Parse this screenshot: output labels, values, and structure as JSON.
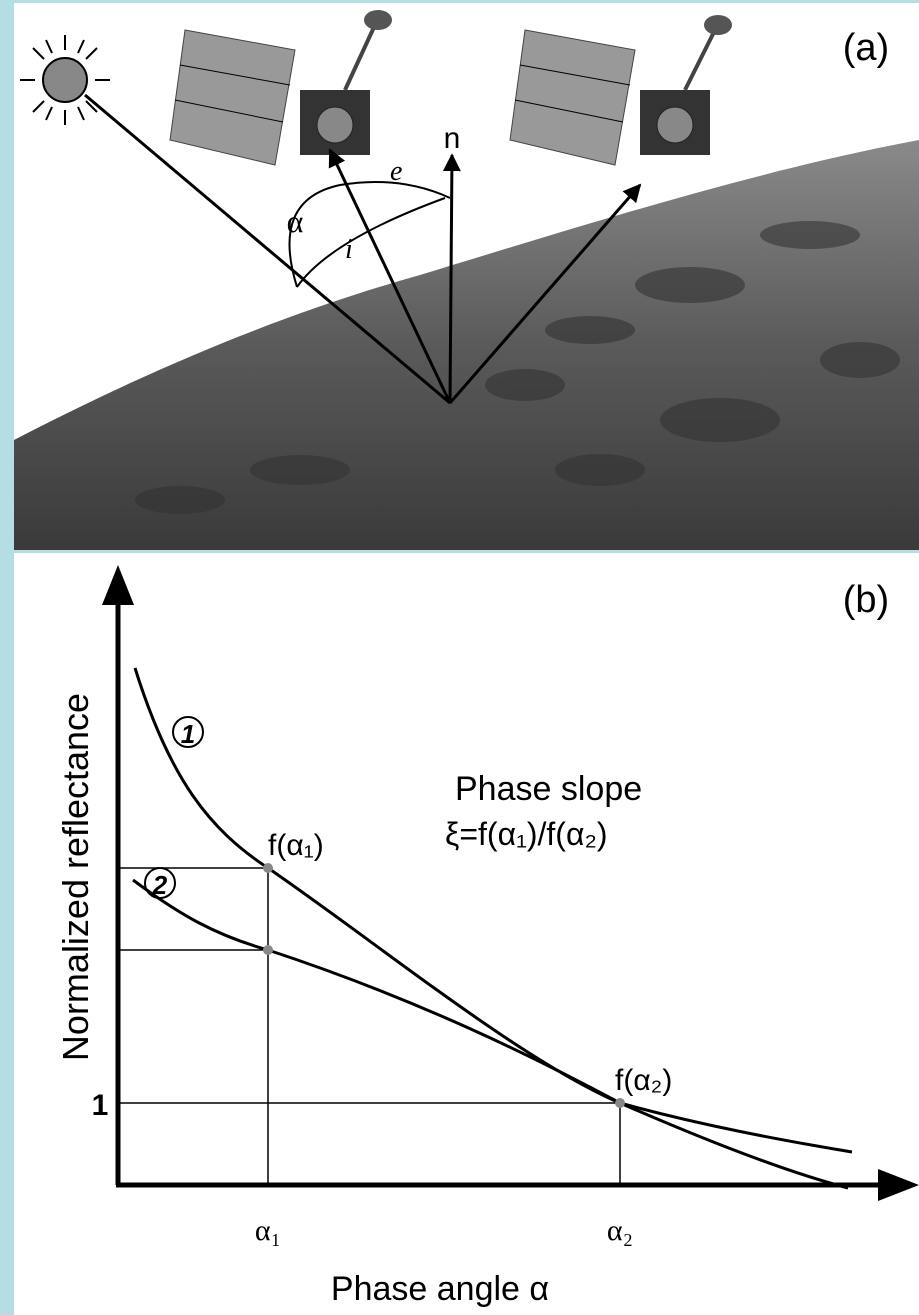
{
  "panel_a": {
    "label": "(a)",
    "normal": "n",
    "phase_angle_symbol": "α",
    "incidence_symbol": "i",
    "emission_symbol": "e"
  },
  "panel_b": {
    "label": "(b)",
    "y_axis_label": "Normalized reflectance",
    "x_axis_label": "Phase angle α",
    "y_tick": "1",
    "x_ticks": [
      "α₁",
      "α₂"
    ],
    "curve_labels": [
      "1",
      "2"
    ],
    "point_labels": [
      "f(α₁)",
      "f(α₂)"
    ],
    "annotation": {
      "title": "Phase slope",
      "formula": "ξ=f(α₁)/f(α₂)"
    }
  }
}
